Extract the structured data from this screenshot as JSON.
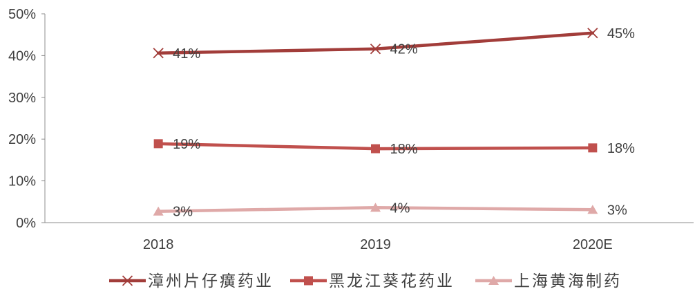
{
  "chart_data": {
    "type": "line",
    "categories": [
      "2018",
      "2019",
      "2020E"
    ],
    "ylim": [
      0,
      50
    ],
    "y_ticks": [
      {
        "value": 0,
        "label": "0%"
      },
      {
        "value": 10,
        "label": "10%"
      },
      {
        "value": 20,
        "label": "20%"
      },
      {
        "value": 30,
        "label": "30%"
      },
      {
        "value": 40,
        "label": "40%"
      },
      {
        "value": 50,
        "label": "50%"
      }
    ],
    "grid": false,
    "legend": "bottom",
    "series": [
      {
        "name": "漳州片仔癀药业",
        "marker": "x",
        "color": "#A23D3A",
        "values": [
          40.6,
          41.6,
          45.4
        ],
        "labels": [
          "41%",
          "42%",
          "45%"
        ]
      },
      {
        "name": "黑龙江葵花药业",
        "marker": "square",
        "color": "#C0504D",
        "values": [
          18.9,
          17.7,
          17.9
        ],
        "labels": [
          "19%",
          "18%",
          "18%"
        ]
      },
      {
        "name": "上海黄海制药",
        "marker": "triangle",
        "color": "#DFA9A8",
        "values": [
          2.7,
          3.6,
          3.1
        ],
        "labels": [
          "3%",
          "4%",
          "3%"
        ]
      }
    ]
  }
}
